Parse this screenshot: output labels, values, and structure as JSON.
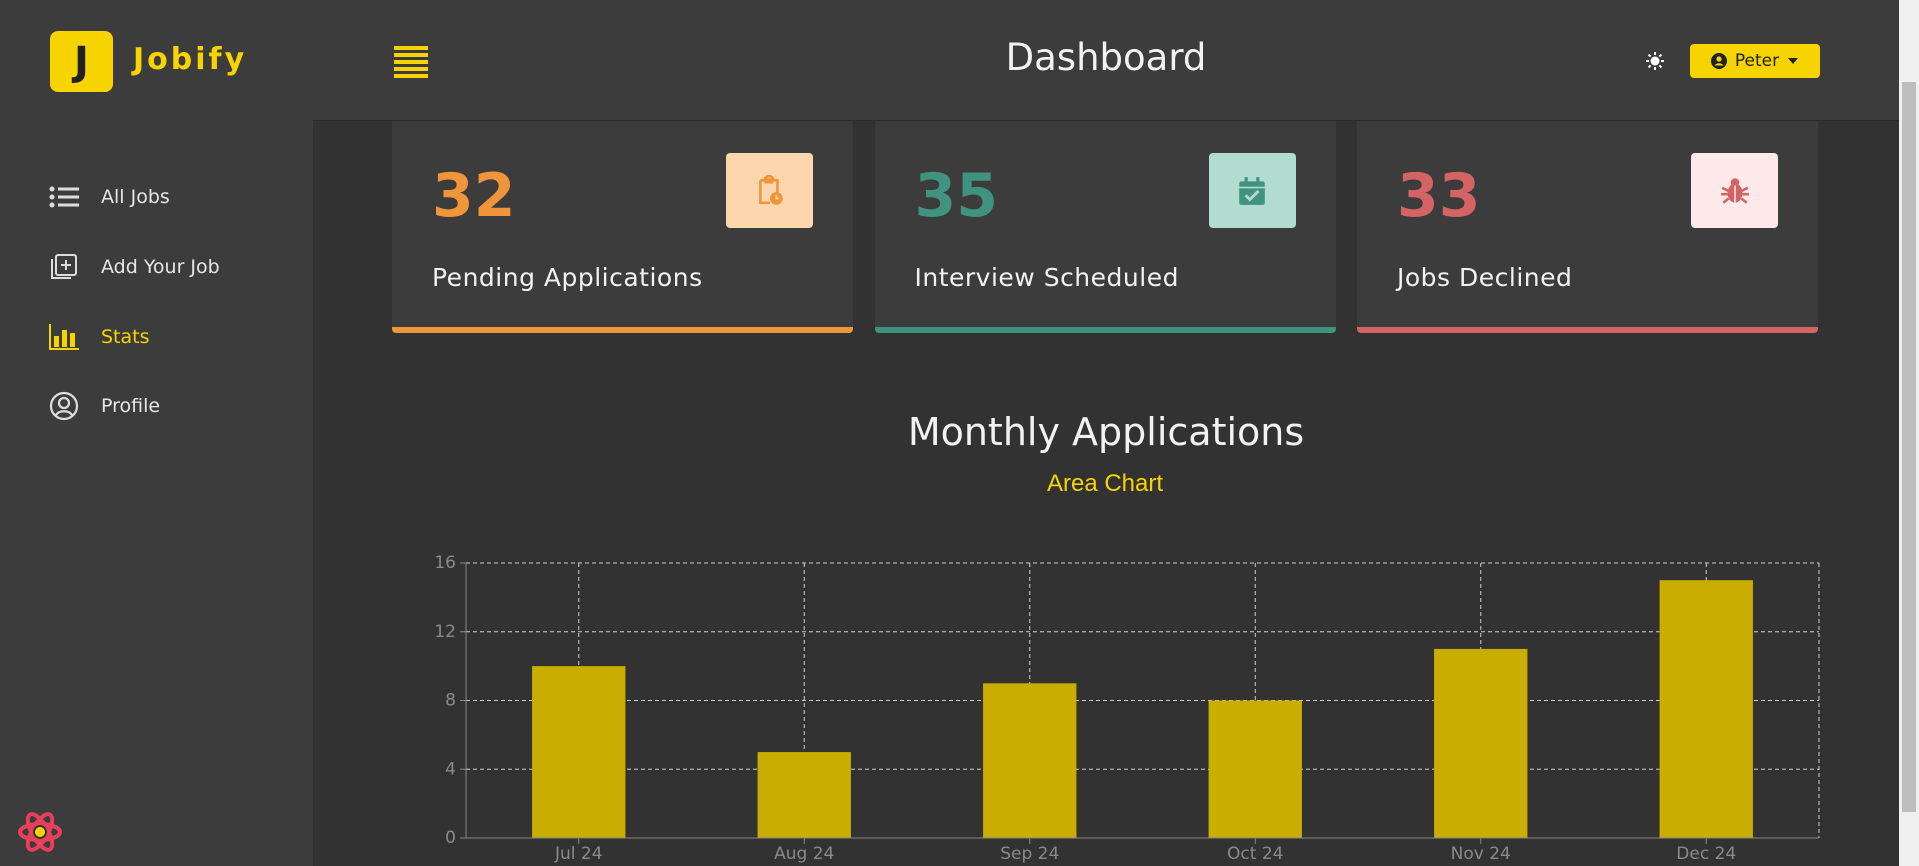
{
  "brand": "Jobify",
  "logo_letter": "J",
  "header": {
    "title": "Dashboard",
    "user": "Peter"
  },
  "sidebar": {
    "nav": [
      {
        "label": "All Jobs"
      },
      {
        "label": "Add Your Job"
      },
      {
        "label": "Stats"
      },
      {
        "label": "Profile"
      }
    ]
  },
  "stats": [
    {
      "count": "32",
      "label": "Pending Applications",
      "color": "#f0953a",
      "icon_bg": "#fdd6ad"
    },
    {
      "count": "35",
      "label": "Interview Scheduled",
      "color": "#40937f",
      "icon_bg": "#b3dcd1"
    },
    {
      "count": "33",
      "label": "Jobs Declined",
      "color": "#d46464",
      "icon_bg": "#fde9e9"
    }
  ],
  "chart_data": {
    "type": "bar",
    "title": "Monthly Applications",
    "subtitle": "Area Chart",
    "categories": [
      "Jul 24",
      "Aug 24",
      "Sep 24",
      "Oct 24",
      "Nov 24",
      "Dec 24"
    ],
    "values": [
      10,
      5,
      9,
      8,
      11,
      15
    ],
    "color": "#c9ad00",
    "ylim": [
      0,
      16
    ],
    "yticks": [
      0,
      4,
      8,
      12,
      16
    ],
    "grid": true
  }
}
